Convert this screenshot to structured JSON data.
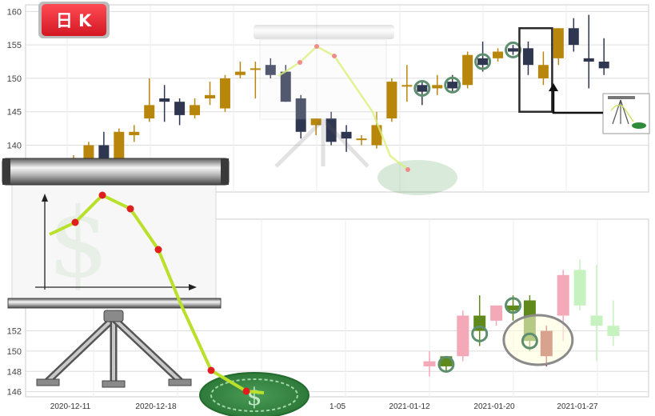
{
  "badge": {
    "label": "日 K"
  },
  "colors": {
    "up": "#b8860b",
    "down": "#2f3650",
    "up_light": "#f4a9b8",
    "down_light": "#c6f2c0",
    "up_alt": "#5f8a1b",
    "down_alt": "#a83232",
    "grid": "#dddddd",
    "marker": "#5d8f6f",
    "badge": "#e8232e"
  },
  "chart_data": [
    {
      "type": "candlestick",
      "ylim": [
        133,
        161
      ],
      "yticks": [
        140,
        145,
        150,
        155,
        160
      ],
      "candles": [
        {
          "o": 136.0,
          "h": 137.0,
          "l": 135.5,
          "c": 136.5
        },
        {
          "o": 137.0,
          "h": 138.5,
          "l": 136.5,
          "c": 138.0
        },
        {
          "o": 137.5,
          "h": 140.5,
          "l": 137.0,
          "c": 140.0
        },
        {
          "o": 140.0,
          "h": 142.0,
          "l": 135.0,
          "c": 137.0
        },
        {
          "o": 137.0,
          "h": 142.5,
          "l": 136.0,
          "c": 142.0
        },
        {
          "o": 141.5,
          "h": 143.0,
          "l": 140.5,
          "c": 142.0
        },
        {
          "o": 144.0,
          "h": 150.0,
          "l": 143.5,
          "c": 146.0
        },
        {
          "o": 147.0,
          "h": 149.0,
          "l": 143.5,
          "c": 146.5
        },
        {
          "o": 146.5,
          "h": 147.0,
          "l": 143.0,
          "c": 144.5
        },
        {
          "o": 144.5,
          "h": 147.0,
          "l": 144.0,
          "c": 146.0
        },
        {
          "o": 147.0,
          "h": 149.5,
          "l": 146.0,
          "c": 147.5
        },
        {
          "o": 145.5,
          "h": 150.5,
          "l": 145.0,
          "c": 150.0
        },
        {
          "o": 150.5,
          "h": 152.5,
          "l": 150.0,
          "c": 151.0
        },
        {
          "o": 151.5,
          "h": 152.5,
          "l": 147.0,
          "c": 151.5
        },
        {
          "o": 152.0,
          "h": 153.0,
          "l": 150.0,
          "c": 150.5
        },
        {
          "o": 151.0,
          "h": 152.0,
          "l": 146.5,
          "c": 146.5
        },
        {
          "o": 147.0,
          "h": 147.5,
          "l": 141.0,
          "c": 142.0
        },
        {
          "o": 143.0,
          "h": 144.0,
          "l": 141.5,
          "c": 144.0
        },
        {
          "o": 144.0,
          "h": 145.0,
          "l": 140.0,
          "c": 140.5
        },
        {
          "o": 142.0,
          "h": 143.0,
          "l": 139.0,
          "c": 141.0
        },
        {
          "o": 141.0,
          "h": 141.5,
          "l": 140.0,
          "c": 141.0
        },
        {
          "o": 140.0,
          "h": 145.0,
          "l": 139.5,
          "c": 143.0
        },
        {
          "o": 144.0,
          "h": 150.0,
          "l": 143.5,
          "c": 149.5
        },
        {
          "o": 149.0,
          "h": 152.0,
          "l": 146.5,
          "c": 149.0
        },
        {
          "o": 149.0,
          "h": 149.5,
          "l": 146.0,
          "c": 148.0
        },
        {
          "o": 148.5,
          "h": 150.5,
          "l": 147.5,
          "c": 149.0
        },
        {
          "o": 149.5,
          "h": 150.5,
          "l": 148.0,
          "c": 148.5
        },
        {
          "o": 149.0,
          "h": 154.0,
          "l": 148.5,
          "c": 153.5
        },
        {
          "o": 153.0,
          "h": 155.5,
          "l": 151.0,
          "c": 152.0
        },
        {
          "o": 153.0,
          "h": 154.5,
          "l": 152.5,
          "c": 154.0
        },
        {
          "o": 154.5,
          "h": 155.0,
          "l": 153.5,
          "c": 154.0
        },
        {
          "o": 154.5,
          "h": 155.5,
          "l": 150.5,
          "c": 152.0
        },
        {
          "o": 150.0,
          "h": 154.0,
          "l": 149.0,
          "c": 152.0
        },
        {
          "o": 153.0,
          "h": 157.5,
          "l": 152.0,
          "c": 157.5
        },
        {
          "o": 157.5,
          "h": 159.0,
          "l": 154.0,
          "c": 155.0
        },
        {
          "o": 153.0,
          "h": 159.5,
          "l": 148.5,
          "c": 152.5
        },
        {
          "o": 152.5,
          "h": 156.0,
          "l": 150.5,
          "c": 151.5
        }
      ],
      "annotations": {
        "circled_candles": [
          24,
          26,
          28,
          30
        ],
        "boxed_candles": [
          31,
          32
        ]
      }
    },
    {
      "type": "candlestick",
      "ylim": [
        145.5,
        163
      ],
      "yticks": [
        146,
        148,
        150,
        152
      ],
      "xticks": [
        "2020-12-11",
        "2020-12-18",
        "1-05",
        "2021-01-12",
        "2021-01-20",
        "2021-01-27"
      ],
      "candles": [
        {
          "o": 148.5,
          "h": 150.0,
          "l": 147.5,
          "c": 149.0,
          "style": "up_light"
        },
        {
          "o": 148.5,
          "h": 149.5,
          "l": 148.0,
          "c": 149.5,
          "style": "up_alt"
        },
        {
          "o": 149.5,
          "h": 154.0,
          "l": 149.0,
          "c": 153.5,
          "style": "up_light"
        },
        {
          "o": 152.0,
          "h": 155.5,
          "l": 150.5,
          "c": 153.5,
          "style": "up_alt"
        },
        {
          "o": 153.0,
          "h": 154.5,
          "l": 152.5,
          "c": 154.5,
          "style": "up_light"
        },
        {
          "o": 154.0,
          "h": 155.5,
          "l": 153.0,
          "c": 154.5,
          "style": "up_alt"
        },
        {
          "o": 151.0,
          "h": 155.5,
          "l": 150.0,
          "c": 155.0,
          "style": "up_alt"
        },
        {
          "o": 152.0,
          "h": 152.5,
          "l": 148.5,
          "c": 149.5,
          "style": "down_alt"
        },
        {
          "o": 153.5,
          "h": 158.0,
          "l": 151.0,
          "c": 157.5,
          "style": "up_light"
        },
        {
          "o": 158.0,
          "h": 159.0,
          "l": 154.0,
          "c": 154.5,
          "style": "down_light"
        },
        {
          "o": 153.5,
          "h": 158.5,
          "l": 149.0,
          "c": 152.5,
          "style": "down_light"
        },
        {
          "o": 152.5,
          "h": 155.0,
          "l": 150.5,
          "c": 151.5,
          "style": "down_light"
        }
      ]
    }
  ]
}
